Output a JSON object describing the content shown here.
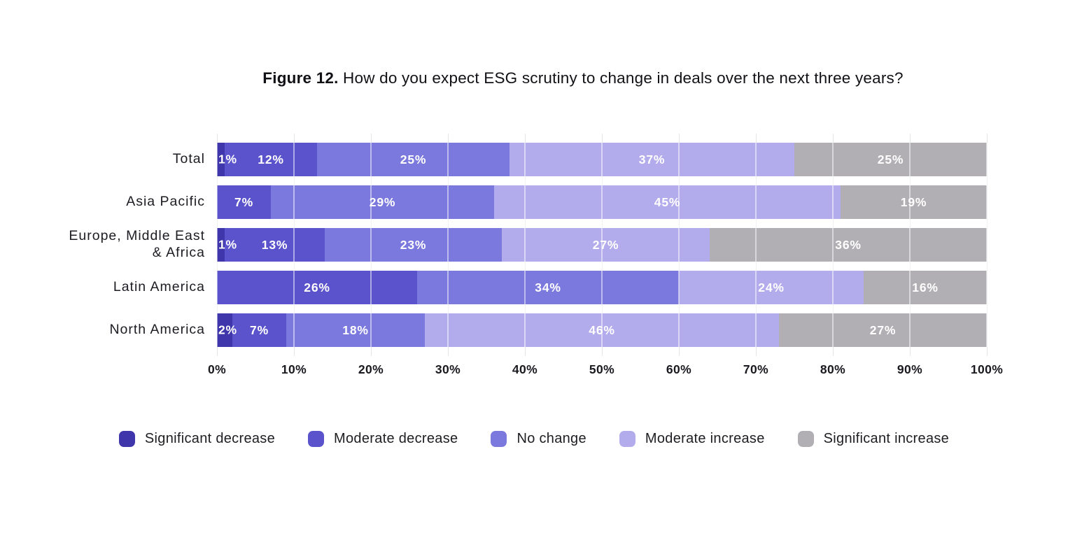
{
  "title": {
    "prefix": "Figure 12.",
    "text": " How do you expect ESG scrutiny to change in deals over the next three years?"
  },
  "chart_data": {
    "type": "bar",
    "orientation": "horizontal-stacked",
    "title": "Figure 12. How do you expect ESG scrutiny to change in deals over the next three years?",
    "categories": [
      "Total",
      "Asia Pacific",
      "Europe, Middle East & Africa",
      "Latin America",
      "North America"
    ],
    "series": [
      {
        "name": "Significant decrease",
        "color": "#3e36aa",
        "values": [
          1,
          0,
          1,
          0,
          2
        ]
      },
      {
        "name": "Moderate decrease",
        "color": "#5b53cc",
        "values": [
          12,
          7,
          13,
          26,
          7
        ]
      },
      {
        "name": "No change",
        "color": "#7b78de",
        "values": [
          25,
          29,
          23,
          34,
          18
        ]
      },
      {
        "name": "Moderate increase",
        "color": "#b3acec",
        "values": [
          37,
          45,
          27,
          24,
          46
        ]
      },
      {
        "name": "Significant increase",
        "color": "#b1afb3",
        "values": [
          25,
          19,
          36,
          16,
          27
        ]
      }
    ],
    "x_ticks": [
      "0%",
      "10%",
      "20%",
      "30%",
      "40%",
      "50%",
      "60%",
      "70%",
      "80%",
      "90%",
      "100%"
    ],
    "xlim": [
      0,
      100
    ],
    "value_suffix": "%",
    "grid": true,
    "gridline_color": "#e3e7e4",
    "bar_label_color": "#ffffff",
    "legend_position": "bottom"
  }
}
